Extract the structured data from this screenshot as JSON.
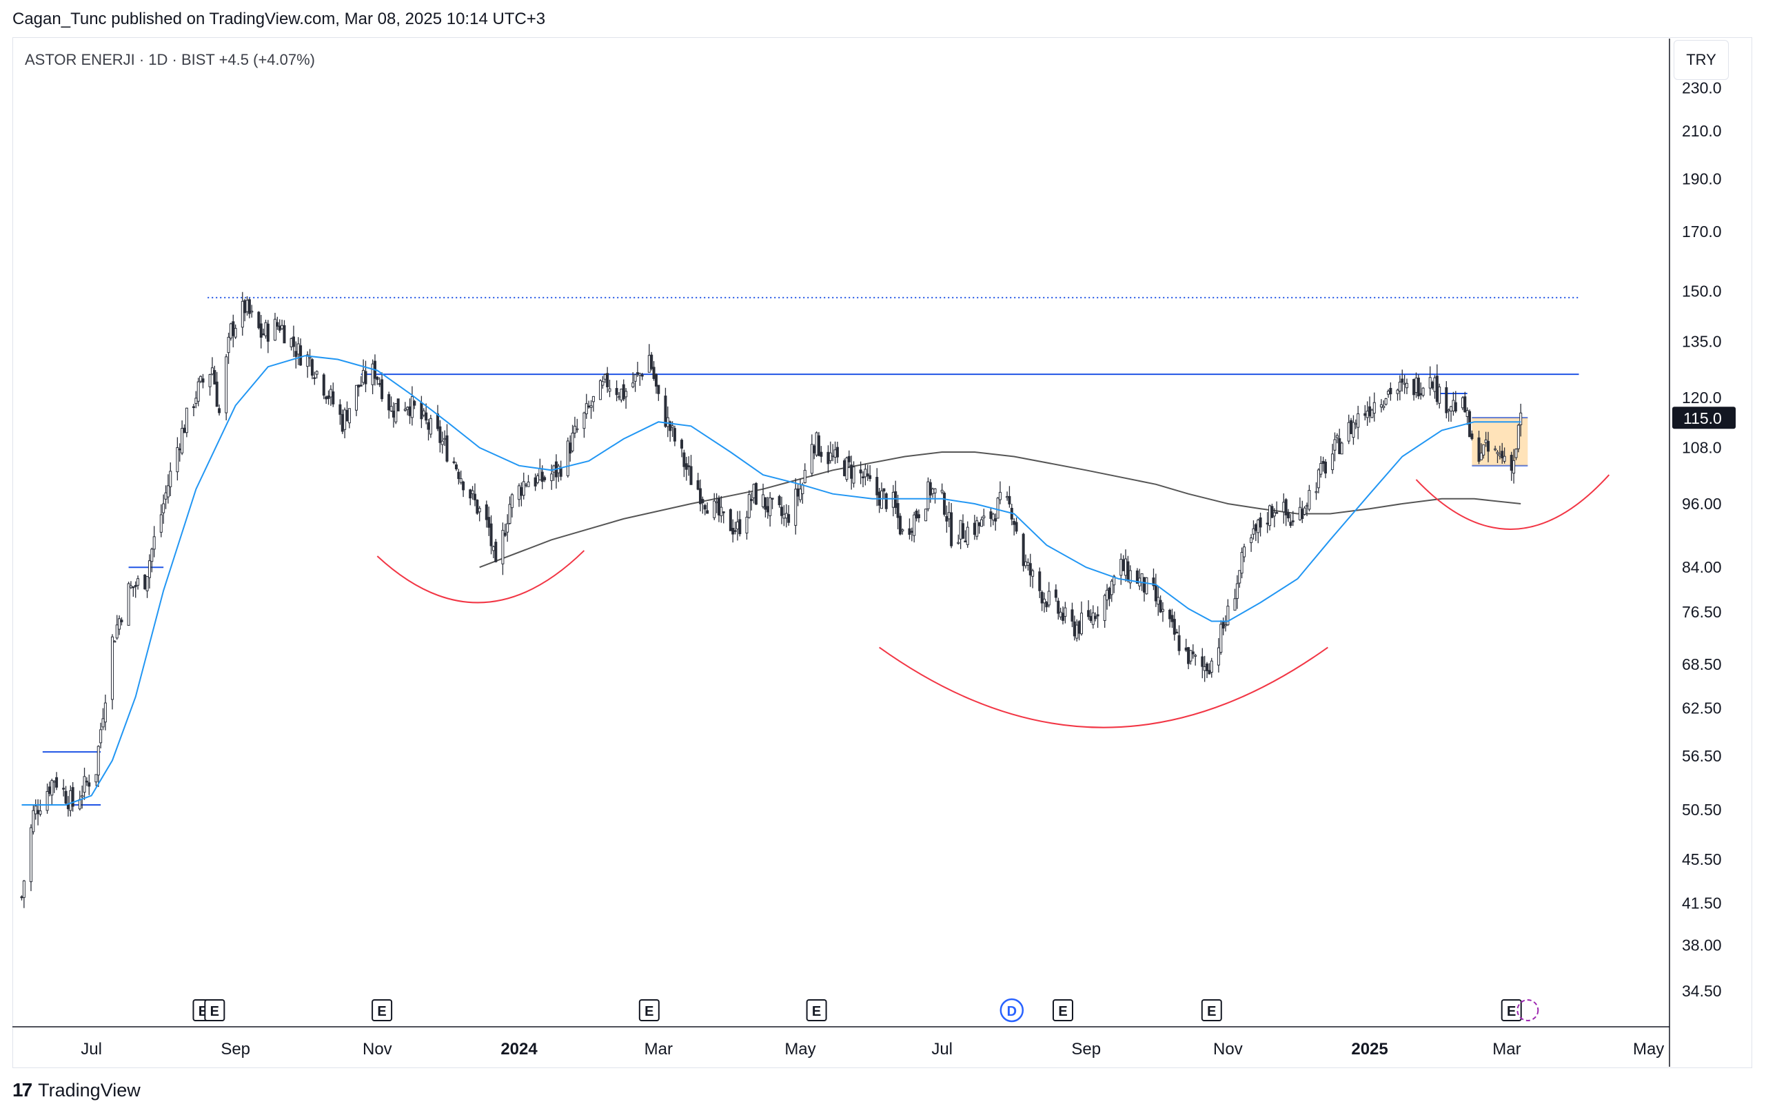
{
  "header": {
    "published": "Cagan_Tunc published on TradingView.com, Mar 08, 2025 10:14 UTC+3"
  },
  "legend": {
    "text": "ASTOR ENERJI · 1D · BIST  +4.5 (+4.07%)"
  },
  "currency": "TRY",
  "footer": {
    "brand": "TradingView",
    "logo_icon": "tradingview-logo-icon"
  },
  "colors": {
    "candle": "#2a2e39",
    "ma_fast": "#2196f3",
    "ma_slow": "#555555",
    "arc": "#f23645",
    "line": "#1e53e5",
    "box": "#ffcc80"
  },
  "chart_data": {
    "type": "candlestick",
    "title": "ASTOR ENERJI · 1D · BIST",
    "symbol": "ASTOR ENERJI",
    "interval": "1D",
    "exchange": "BIST",
    "change": "+4.5 (+4.07%)",
    "scale": "log",
    "ylim": [
      32,
      255
    ],
    "y_ticks": [
      "230.0",
      "210.0",
      "190.0",
      "170.0",
      "150.0",
      "135.0",
      "120.0",
      "108.0",
      "96.00",
      "84.00",
      "76.50",
      "68.50",
      "62.50",
      "56.50",
      "50.50",
      "45.50",
      "41.50",
      "38.00",
      "34.50"
    ],
    "x_ticks": [
      "Jul",
      "Sep",
      "Nov",
      "2024",
      "Mar",
      "May",
      "Jul",
      "Sep",
      "Nov",
      "2025",
      "Mar",
      "May"
    ],
    "last_price": "115.0",
    "price_path": [
      [
        "2023-06-01",
        42
      ],
      [
        "2023-06-06",
        50
      ],
      [
        "2023-06-15",
        54
      ],
      [
        "2023-06-23",
        51
      ],
      [
        "2023-07-03",
        55
      ],
      [
        "2023-07-10",
        72
      ],
      [
        "2023-07-17",
        80
      ],
      [
        "2023-07-24",
        82
      ],
      [
        "2023-07-31",
        94
      ],
      [
        "2023-08-08",
        110
      ],
      [
        "2023-08-15",
        121
      ],
      [
        "2023-08-22",
        128
      ],
      [
        "2023-08-25",
        116
      ],
      [
        "2023-08-30",
        138
      ],
      [
        "2023-09-05",
        145
      ],
      [
        "2023-09-12",
        137
      ],
      [
        "2023-09-20",
        140
      ],
      [
        "2023-09-28",
        132
      ],
      [
        "2023-10-03",
        130
      ],
      [
        "2023-10-10",
        122
      ],
      [
        "2023-10-17",
        114
      ],
      [
        "2023-10-24",
        123
      ],
      [
        "2023-10-31",
        127
      ],
      [
        "2023-11-07",
        117
      ],
      [
        "2023-11-14",
        119
      ],
      [
        "2023-11-21",
        114
      ],
      [
        "2023-11-28",
        110
      ],
      [
        "2023-12-05",
        104
      ],
      [
        "2023-12-12",
        97
      ],
      [
        "2023-12-19",
        91
      ],
      [
        "2023-12-22",
        83
      ],
      [
        "2023-12-28",
        96
      ],
      [
        "2024-01-04",
        101
      ],
      [
        "2024-01-11",
        101
      ],
      [
        "2024-01-18",
        103
      ],
      [
        "2024-01-25",
        111
      ],
      [
        "2024-02-01",
        118
      ],
      [
        "2024-02-08",
        124
      ],
      [
        "2024-02-15",
        121
      ],
      [
        "2024-02-22",
        126
      ],
      [
        "2024-02-26",
        131
      ],
      [
        "2024-03-01",
        119
      ],
      [
        "2024-03-07",
        111
      ],
      [
        "2024-03-14",
        102
      ],
      [
        "2024-03-21",
        97
      ],
      [
        "2024-03-28",
        93
      ],
      [
        "2024-04-04",
        91
      ],
      [
        "2024-04-11",
        98
      ],
      [
        "2024-04-18",
        95
      ],
      [
        "2024-04-25",
        93
      ],
      [
        "2024-05-02",
        100
      ],
      [
        "2024-05-06",
        110
      ],
      [
        "2024-05-13",
        106
      ],
      [
        "2024-05-20",
        104
      ],
      [
        "2024-05-27",
        102
      ],
      [
        "2024-06-03",
        98
      ],
      [
        "2024-06-10",
        96
      ],
      [
        "2024-06-14",
        90
      ],
      [
        "2024-06-20",
        94
      ],
      [
        "2024-06-26",
        99
      ],
      [
        "2024-07-02",
        96
      ],
      [
        "2024-07-05",
        90
      ],
      [
        "2024-07-12",
        91
      ],
      [
        "2024-07-19",
        92
      ],
      [
        "2024-07-26",
        96
      ],
      [
        "2024-07-31",
        95
      ],
      [
        "2024-08-05",
        85
      ],
      [
        "2024-08-12",
        80
      ],
      [
        "2024-08-19",
        77
      ],
      [
        "2024-08-26",
        74
      ],
      [
        "2024-09-02",
        75
      ],
      [
        "2024-09-09",
        79
      ],
      [
        "2024-09-16",
        84
      ],
      [
        "2024-09-23",
        82
      ],
      [
        "2024-09-30",
        79
      ],
      [
        "2024-10-07",
        74
      ],
      [
        "2024-10-14",
        70
      ],
      [
        "2024-10-21",
        68
      ],
      [
        "2024-10-25",
        69
      ],
      [
        "2024-11-01",
        76
      ],
      [
        "2024-11-08",
        86
      ],
      [
        "2024-11-15",
        92
      ],
      [
        "2024-11-22",
        96
      ],
      [
        "2024-11-29",
        92
      ],
      [
        "2024-12-06",
        98
      ],
      [
        "2024-12-13",
        104
      ],
      [
        "2024-12-20",
        110
      ],
      [
        "2024-12-27",
        115
      ],
      [
        "2025-01-03",
        119
      ],
      [
        "2025-01-10",
        122
      ],
      [
        "2025-01-17",
        122
      ],
      [
        "2025-01-24",
        124
      ],
      [
        "2025-01-27",
        127
      ],
      [
        "2025-01-31",
        120
      ],
      [
        "2025-02-07",
        118
      ],
      [
        "2025-02-11",
        117
      ],
      [
        "2025-02-14",
        108
      ],
      [
        "2025-02-21",
        107
      ],
      [
        "2025-02-28",
        106
      ],
      [
        "2025-03-04",
        105
      ],
      [
        "2025-03-07",
        115
      ]
    ],
    "ma_fast_path": [
      [
        "2023-06-01",
        51
      ],
      [
        "2023-06-20",
        51
      ],
      [
        "2023-07-01",
        52
      ],
      [
        "2023-07-10",
        56
      ],
      [
        "2023-07-20",
        64
      ],
      [
        "2023-08-01",
        80
      ],
      [
        "2023-08-15",
        99
      ],
      [
        "2023-09-01",
        118
      ],
      [
        "2023-09-15",
        128
      ],
      [
        "2023-10-01",
        131
      ],
      [
        "2023-10-15",
        130
      ],
      [
        "2023-11-01",
        127
      ],
      [
        "2023-11-15",
        121
      ],
      [
        "2023-12-01",
        114
      ],
      [
        "2023-12-15",
        108
      ],
      [
        "2024-01-01",
        104
      ],
      [
        "2024-01-15",
        103
      ],
      [
        "2024-01-31",
        105
      ],
      [
        "2024-02-15",
        110
      ],
      [
        "2024-03-01",
        114
      ],
      [
        "2024-03-15",
        113
      ],
      [
        "2024-04-01",
        107
      ],
      [
        "2024-04-15",
        102
      ],
      [
        "2024-05-01",
        100
      ],
      [
        "2024-05-15",
        98
      ],
      [
        "2024-06-01",
        97
      ],
      [
        "2024-06-15",
        97
      ],
      [
        "2024-07-01",
        97
      ],
      [
        "2024-07-15",
        96
      ],
      [
        "2024-08-01",
        94
      ],
      [
        "2024-08-15",
        88
      ],
      [
        "2024-09-01",
        84
      ],
      [
        "2024-09-15",
        82
      ],
      [
        "2024-10-01",
        81
      ],
      [
        "2024-10-15",
        77
      ],
      [
        "2024-10-25",
        75
      ],
      [
        "2024-11-01",
        75
      ],
      [
        "2024-11-15",
        78
      ],
      [
        "2024-12-01",
        82
      ],
      [
        "2024-12-15",
        89
      ],
      [
        "2025-01-01",
        98
      ],
      [
        "2025-01-15",
        106
      ],
      [
        "2025-02-01",
        112
      ],
      [
        "2025-02-15",
        114
      ],
      [
        "2025-03-07",
        114
      ]
    ],
    "ma_slow_path": [
      [
        "2023-12-15",
        84
      ],
      [
        "2024-01-15",
        89
      ],
      [
        "2024-02-15",
        93
      ],
      [
        "2024-03-15",
        96
      ],
      [
        "2024-04-15",
        99
      ],
      [
        "2024-05-15",
        103
      ],
      [
        "2024-06-15",
        106
      ],
      [
        "2024-07-01",
        107
      ],
      [
        "2024-07-15",
        107
      ],
      [
        "2024-08-01",
        106
      ],
      [
        "2024-09-01",
        103
      ],
      [
        "2024-10-01",
        100
      ],
      [
        "2024-10-15",
        98
      ],
      [
        "2024-11-01",
        96
      ],
      [
        "2024-11-15",
        95
      ],
      [
        "2024-12-01",
        94
      ],
      [
        "2024-12-15",
        94
      ],
      [
        "2025-01-01",
        95
      ],
      [
        "2025-01-15",
        96
      ],
      [
        "2025-02-01",
        97
      ],
      [
        "2025-02-15",
        97
      ],
      [
        "2025-03-07",
        96
      ]
    ],
    "horizontal_levels": [
      {
        "price": 148,
        "from": "2023-08-20",
        "to": "2025-04-01",
        "style": "dotted"
      },
      {
        "price": 126,
        "from": "2023-10-25",
        "to": "2025-04-01",
        "style": "solid"
      },
      {
        "price": 84,
        "from": "2023-07-17",
        "to": "2023-08-01",
        "style": "solid"
      },
      {
        "price": 57,
        "from": "2023-06-10",
        "to": "2023-07-05",
        "style": "solid"
      },
      {
        "price": 51,
        "from": "2023-06-10",
        "to": "2023-07-05",
        "style": "solid"
      },
      {
        "price": 121,
        "from": "2025-01-31",
        "to": "2025-02-12",
        "style": "solid"
      },
      {
        "price": 115,
        "from": "2025-02-14",
        "to": "2025-03-10",
        "style": "solid"
      },
      {
        "price": 104,
        "from": "2025-02-14",
        "to": "2025-03-10",
        "style": "solid"
      }
    ],
    "range_box": {
      "from": "2025-02-14",
      "to": "2025-03-10",
      "high": 115,
      "low": 104
    },
    "event_markers": [
      {
        "date": "2023-08-18",
        "label": "E",
        "kind": "earnings"
      },
      {
        "date": "2023-08-23",
        "label": "E",
        "kind": "earnings"
      },
      {
        "date": "2023-11-03",
        "label": "E",
        "kind": "earnings"
      },
      {
        "date": "2024-02-26",
        "label": "E",
        "kind": "earnings"
      },
      {
        "date": "2024-05-08",
        "label": "E",
        "kind": "earnings"
      },
      {
        "date": "2024-07-31",
        "label": "D",
        "kind": "dividend"
      },
      {
        "date": "2024-08-22",
        "label": "E",
        "kind": "earnings"
      },
      {
        "date": "2024-10-25",
        "label": "E",
        "kind": "earnings"
      },
      {
        "date": "2025-03-03",
        "label": "E",
        "kind": "earnings"
      }
    ],
    "annotations": [
      {
        "kind": "arc",
        "from": [
          "2023-11-01",
          86
        ],
        "to": [
          "2024-01-29",
          87
        ],
        "min": 78
      },
      {
        "kind": "arc",
        "from": [
          "2024-06-04",
          71
        ],
        "to": [
          "2024-12-14",
          71
        ],
        "min": 60
      },
      {
        "kind": "arc",
        "from": [
          "2025-01-21",
          101
        ],
        "to": [
          "2025-04-14",
          102
        ],
        "min": 91
      }
    ],
    "legend": "none",
    "grid": false
  }
}
